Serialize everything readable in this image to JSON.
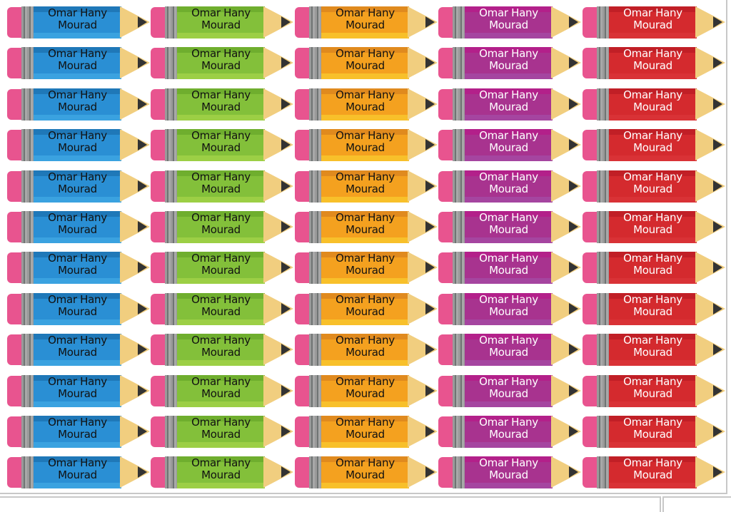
{
  "label": {
    "line1": "Omar Hany",
    "line2": "Mourad"
  },
  "rows": 12,
  "columns": [
    {
      "color": "blue",
      "body": "#2a8fd4",
      "top": "#1f78b8",
      "bottom": "#3aa2e0",
      "text": "#111111"
    },
    {
      "color": "green",
      "body": "#83c03a",
      "top": "#6fae2e",
      "bottom": "#9ccf45",
      "text": "#111111"
    },
    {
      "color": "orange",
      "body": "#f4a11f",
      "top": "#e08a1e",
      "bottom": "#f8c02a",
      "text": "#111111"
    },
    {
      "color": "purple",
      "body": "#a8338f",
      "top": "#b3208a",
      "bottom": "#a545a0",
      "text": "#ffffff"
    },
    {
      "color": "red",
      "body": "#d42a2e",
      "top": "#c11f26",
      "bottom": "#d93236",
      "text": "#ffffff"
    }
  ],
  "colors": {
    "eraser": "#e8548f",
    "wood": "#f1ce7f",
    "lead": "#333333",
    "ferrule": "#9a9a9a"
  }
}
